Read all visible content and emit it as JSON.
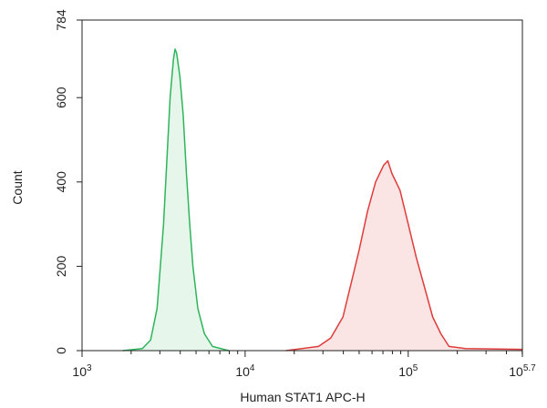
{
  "chart_data": {
    "type": "area",
    "xlabel": "Human STAT1 APC-H",
    "ylabel": "Count",
    "x_scale": "log10",
    "xlim": [
      1000,
      501187
    ],
    "ylim": [
      0,
      784
    ],
    "x_ticks": [
      {
        "base": "10",
        "exp": "3",
        "value": 1000
      },
      {
        "base": "10",
        "exp": "4",
        "value": 10000
      },
      {
        "base": "10",
        "exp": "5",
        "value": 100000
      },
      {
        "base": "10",
        "exp": "5.7",
        "value": 501187
      }
    ],
    "y_ticks": [
      {
        "label": "0",
        "value": 0
      },
      {
        "label": "200",
        "value": 200
      },
      {
        "label": "400",
        "value": 400
      },
      {
        "label": "600",
        "value": 600
      },
      {
        "label": "784",
        "value": 784
      }
    ],
    "grid": false,
    "legend": "none",
    "series": [
      {
        "color": "#2eb55c",
        "fill": "#e6f6ea",
        "points": [
          [
            1778,
            0
          ],
          [
            2344,
            5
          ],
          [
            2632,
            25
          ],
          [
            2884,
            100
          ],
          [
            3020,
            200
          ],
          [
            3162,
            300
          ],
          [
            3311,
            450
          ],
          [
            3467,
            600
          ],
          [
            3631,
            690
          ],
          [
            3715,
            715
          ],
          [
            3802,
            705
          ],
          [
            3981,
            650
          ],
          [
            4169,
            560
          ],
          [
            4365,
            420
          ],
          [
            4571,
            300
          ],
          [
            4786,
            200
          ],
          [
            5129,
            100
          ],
          [
            5623,
            40
          ],
          [
            6310,
            10
          ],
          [
            7943,
            0
          ]
        ]
      },
      {
        "color": "#e03c3c",
        "fill": "#fbe4e4",
        "points": [
          [
            17783,
            0
          ],
          [
            28184,
            10
          ],
          [
            33497,
            30
          ],
          [
            39811,
            80
          ],
          [
            44668,
            160
          ],
          [
            50119,
            240
          ],
          [
            56234,
            330
          ],
          [
            63096,
            400
          ],
          [
            70795,
            440
          ],
          [
            74989,
            450
          ],
          [
            79433,
            420
          ],
          [
            89125,
            380
          ],
          [
            100000,
            300
          ],
          [
            112202,
            220
          ],
          [
            125893,
            150
          ],
          [
            141254,
            80
          ],
          [
            158489,
            40
          ],
          [
            177828,
            10
          ],
          [
            223872,
            5
          ],
          [
            501187,
            3
          ]
        ]
      }
    ]
  }
}
